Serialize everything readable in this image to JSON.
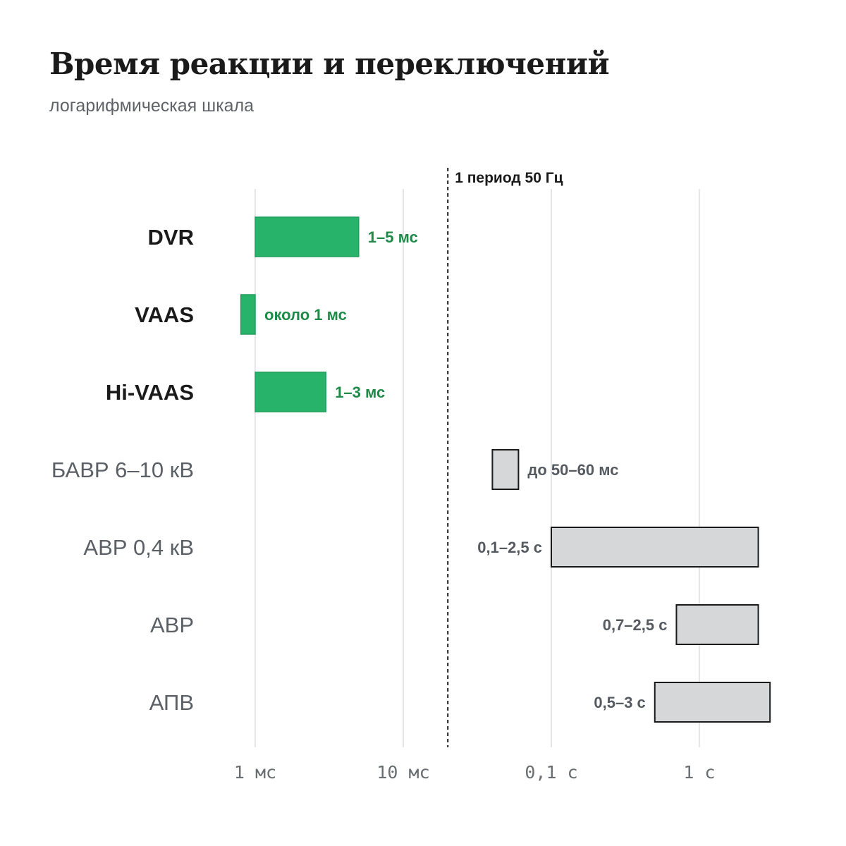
{
  "title": "Время реакции и переключений",
  "subtitle": "логарифмическая шкала",
  "colors": {
    "highlight_fill": "#27b36a",
    "highlight_stroke": "#1f9e5a",
    "highlight_label": "#1e8a48",
    "other_fill": "#d6d7d9",
    "other_stroke": "#1a1a1a",
    "other_label": "#555a60"
  },
  "chart_data": {
    "type": "bar",
    "orientation": "horizontal",
    "x_scale": "log",
    "x_unit": "s",
    "xlim": [
      0.0007,
      4
    ],
    "grid": true,
    "x_ticks": [
      {
        "value": 0.001,
        "label": "1 мс"
      },
      {
        "value": 0.01,
        "label": "10 мс"
      },
      {
        "value": 0.1,
        "label": "0,1 с"
      },
      {
        "value": 1,
        "label": "1 с"
      }
    ],
    "reference_line": {
      "value": 0.02,
      "label": "1 период 50 Гц",
      "style": "dashed"
    },
    "categories": [
      "DVR",
      "VAAS",
      "Hi-VAAS",
      "БАВР 6–10 кВ",
      "АВР 0,4 кВ",
      "АВР",
      "АПВ"
    ],
    "ranges": [
      {
        "category": "DVR",
        "start": 0.001,
        "end": 0.005,
        "label": "1–5 мс",
        "highlight": true,
        "label_side": "right"
      },
      {
        "category": "VAAS",
        "start": 0.0008,
        "end": 0.001,
        "label": "около 1 мс",
        "highlight": true,
        "label_side": "right"
      },
      {
        "category": "Hi-VAAS",
        "start": 0.001,
        "end": 0.003,
        "label": "1–3 мс",
        "highlight": true,
        "label_side": "right"
      },
      {
        "category": "БАВР 6–10 кВ",
        "start": 0.04,
        "end": 0.06,
        "label": "до 50–60 мс",
        "highlight": false,
        "label_side": "right"
      },
      {
        "category": "АВР 0,4 кВ",
        "start": 0.1,
        "end": 2.5,
        "label": "0,1–2,5 с",
        "highlight": false,
        "label_side": "left"
      },
      {
        "category": "АВР",
        "start": 0.7,
        "end": 2.5,
        "label": "0,7–2,5 с",
        "highlight": false,
        "label_side": "left"
      },
      {
        "category": "АПВ",
        "start": 0.5,
        "end": 3,
        "label": "0,5–3 с",
        "highlight": false,
        "label_side": "left"
      }
    ]
  }
}
